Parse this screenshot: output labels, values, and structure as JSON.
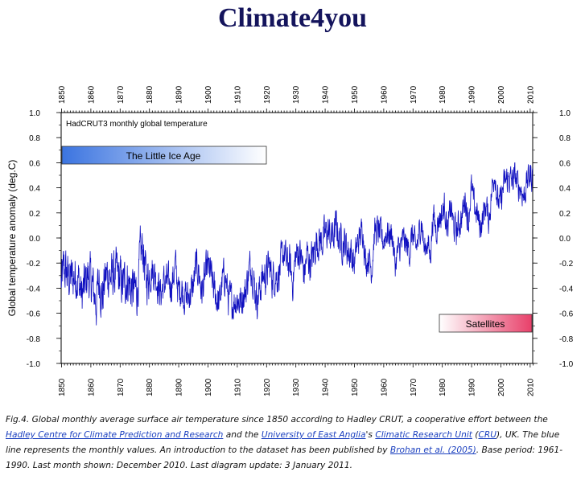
{
  "header": {
    "site_title": "Climate4you"
  },
  "chart_data": {
    "type": "line",
    "title": "HadCRUT3 monthly global temperature",
    "ylabel": "Global temperature anomaly (deg.C)",
    "xlabel": "",
    "xlim": [
      1850,
      2011
    ],
    "ylim": [
      -1.0,
      1.0
    ],
    "x_ticks": [
      1850,
      1860,
      1870,
      1880,
      1890,
      1900,
      1910,
      1920,
      1930,
      1940,
      1950,
      1960,
      1970,
      1980,
      1990,
      2000,
      2010
    ],
    "y_ticks": [
      -1.0,
      -0.8,
      -0.6,
      -0.4,
      -0.2,
      0.0,
      0.2,
      0.4,
      0.6,
      0.8,
      1.0
    ],
    "y_tick_labels": [
      "-1.0",
      "-0.8",
      "-0.6",
      "-0.4",
      "-0.2",
      "0.0",
      "0.2",
      "0.4",
      "0.6",
      "0.8",
      "1.0"
    ],
    "grid": false,
    "line_color": "#1010c0",
    "series": [
      {
        "resolution": "monthly",
        "x": [
          1850,
          1851,
          1852,
          1853,
          1854,
          1855,
          1856,
          1857,
          1858,
          1859,
          1860,
          1861,
          1862,
          1863,
          1864,
          1865,
          1866,
          1867,
          1868,
          1869,
          1870,
          1871,
          1872,
          1873,
          1874,
          1875,
          1876,
          1877,
          1878,
          1879,
          1880,
          1881,
          1882,
          1883,
          1884,
          1885,
          1886,
          1887,
          1888,
          1889,
          1890,
          1891,
          1892,
          1893,
          1894,
          1895,
          1896,
          1897,
          1898,
          1899,
          1900,
          1901,
          1902,
          1903,
          1904,
          1905,
          1906,
          1907,
          1908,
          1909,
          1910,
          1911,
          1912,
          1913,
          1914,
          1915,
          1916,
          1917,
          1918,
          1919,
          1920,
          1921,
          1922,
          1923,
          1924,
          1925,
          1926,
          1927,
          1928,
          1929,
          1930,
          1931,
          1932,
          1933,
          1934,
          1935,
          1936,
          1937,
          1938,
          1939,
          1940,
          1941,
          1942,
          1943,
          1944,
          1945,
          1946,
          1947,
          1948,
          1949,
          1950,
          1951,
          1952,
          1953,
          1954,
          1955,
          1956,
          1957,
          1958,
          1959,
          1960,
          1961,
          1962,
          1963,
          1964,
          1965,
          1966,
          1967,
          1968,
          1969,
          1970,
          1971,
          1972,
          1973,
          1974,
          1975,
          1976,
          1977,
          1978,
          1979,
          1980,
          1981,
          1982,
          1983,
          1984,
          1985,
          1986,
          1987,
          1988,
          1989,
          1990,
          1991,
          1992,
          1993,
          1994,
          1995,
          1996,
          1997,
          1998,
          1999,
          2000,
          2001,
          2002,
          2003,
          2004,
          2005,
          2006,
          2007,
          2008,
          2009,
          2010
        ],
        "values": [
          -0.37,
          -0.24,
          -0.3,
          -0.33,
          -0.32,
          -0.29,
          -0.34,
          -0.47,
          -0.39,
          -0.29,
          -0.34,
          -0.41,
          -0.52,
          -0.3,
          -0.48,
          -0.33,
          -0.28,
          -0.32,
          -0.3,
          -0.29,
          -0.32,
          -0.39,
          -0.33,
          -0.34,
          -0.41,
          -0.42,
          -0.42,
          -0.15,
          -0.08,
          -0.34,
          -0.29,
          -0.25,
          -0.28,
          -0.36,
          -0.45,
          -0.36,
          -0.35,
          -0.39,
          -0.34,
          -0.22,
          -0.43,
          -0.39,
          -0.45,
          -0.48,
          -0.44,
          -0.4,
          -0.23,
          -0.26,
          -0.44,
          -0.33,
          -0.23,
          -0.28,
          -0.4,
          -0.47,
          -0.53,
          -0.35,
          -0.29,
          -0.47,
          -0.51,
          -0.51,
          -0.47,
          -0.52,
          -0.45,
          -0.43,
          -0.27,
          -0.2,
          -0.39,
          -0.49,
          -0.39,
          -0.3,
          -0.3,
          -0.21,
          -0.32,
          -0.3,
          -0.3,
          -0.22,
          -0.11,
          -0.21,
          -0.2,
          -0.36,
          -0.16,
          -0.1,
          -0.16,
          -0.29,
          -0.13,
          -0.2,
          -0.15,
          -0.03,
          -0.02,
          -0.03,
          0.02,
          0.05,
          0.01,
          0.01,
          0.1,
          -0.01,
          -0.03,
          -0.04,
          -0.11,
          -0.11,
          -0.22,
          -0.06,
          0.01,
          0.08,
          -0.2,
          -0.14,
          -0.26,
          0.05,
          0.06,
          0.03,
          -0.03,
          0.05,
          0.02,
          0.04,
          -0.22,
          -0.11,
          -0.06,
          -0.02,
          -0.07,
          -0.1,
          0.04,
          -0.1,
          -0.01,
          0.16,
          -0.11,
          -0.02,
          -0.15,
          0.18,
          0.07,
          0.16,
          0.19,
          0.26,
          0.04,
          0.26,
          0.09,
          0.05,
          0.12,
          0.18,
          0.33,
          0.12,
          0.4,
          0.25,
          0.2,
          0.08,
          0.17,
          0.27,
          0.14,
          0.36,
          0.55,
          0.29,
          0.27,
          0.41,
          0.46,
          0.47,
          0.45,
          0.48,
          0.42,
          0.4,
          0.33,
          0.44,
          0.5
        ]
      }
    ]
  },
  "annotations": {
    "little_ice_age": {
      "label": "The Little Ice Age",
      "color_from": "#3b74e0",
      "color_to": "#ffffff"
    },
    "satellites": {
      "label": "Satellites",
      "color_from": "#ffffff",
      "color_to": "#e8406a"
    }
  },
  "caption": {
    "prefix": "Fig.4. Global monthly average surface air temperature since 1850 according to Hadley CRUT, a cooperative effort between the ",
    "link_hadley": "Hadley Centre for Climate Prediction and Research",
    "text_and_the": " and the ",
    "link_uea": "University of East Anglia",
    "text_apostrophe": "'s ",
    "link_cru_unit": "Climatic Research Unit",
    "text_paren_open": " (",
    "link_cru": "CRU",
    "text_uk": "), UK. The blue line represents the monthly values. An introduction to the dataset has been published by ",
    "link_brohan": "Brohan et al. (2005)",
    "suffix": ". Base period: 1961-1990. Last month shown: December 2010. Last diagram update: 3 January 2011."
  }
}
